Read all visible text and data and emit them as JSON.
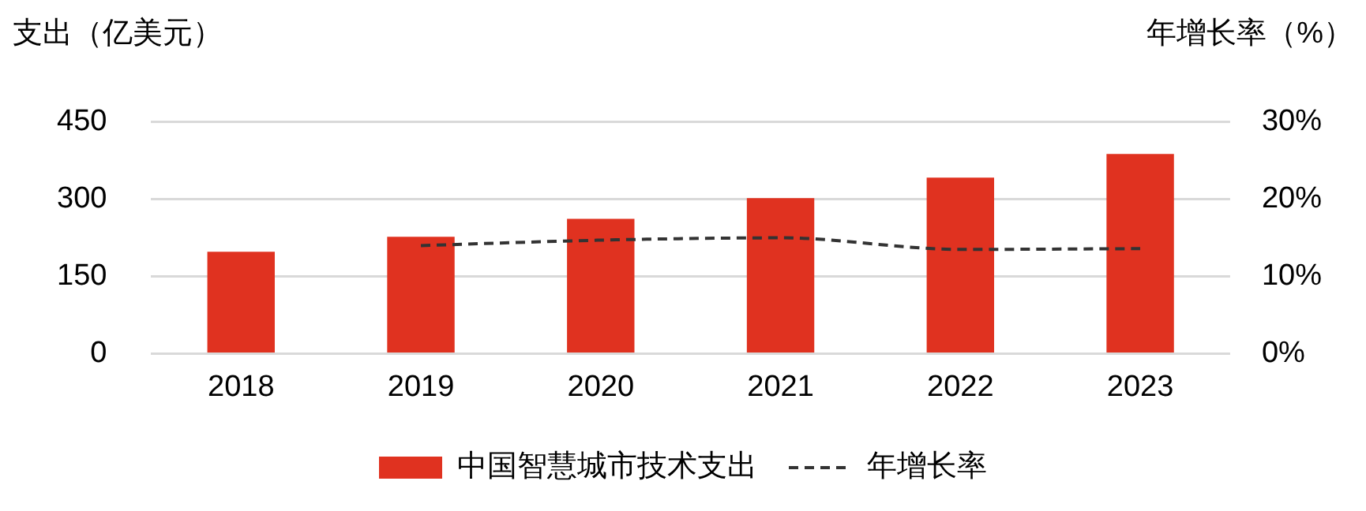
{
  "chart_data": {
    "type": "bar",
    "ylabel": "支出（亿美元）",
    "y2label": "年增长率（%）",
    "categories": [
      "2018",
      "2019",
      "2020",
      "2021",
      "2022",
      "2023"
    ],
    "series": [
      {
        "name": "中国智慧城市技术支出",
        "color": "#e03220",
        "values": [
          198,
          227,
          262,
          302,
          342,
          388
        ]
      },
      {
        "name": "年增长率",
        "type": "line",
        "axis": "y2",
        "color": "#333333",
        "line_style": "dashed",
        "marker": "none",
        "values": [
          null,
          14.0,
          14.7,
          15.0,
          13.5,
          13.6
        ]
      }
    ],
    "ylim": [
      0,
      450
    ],
    "yticks": [
      0,
      150,
      300,
      450
    ],
    "y2lim": [
      0,
      30
    ],
    "y2ticks": [
      {
        "value": 0,
        "label": "0%"
      },
      {
        "value": 10,
        "label": "10%"
      },
      {
        "value": 20,
        "label": "20%"
      },
      {
        "value": 30,
        "label": "30%"
      }
    ],
    "grid": "y",
    "legend": "bottom"
  }
}
